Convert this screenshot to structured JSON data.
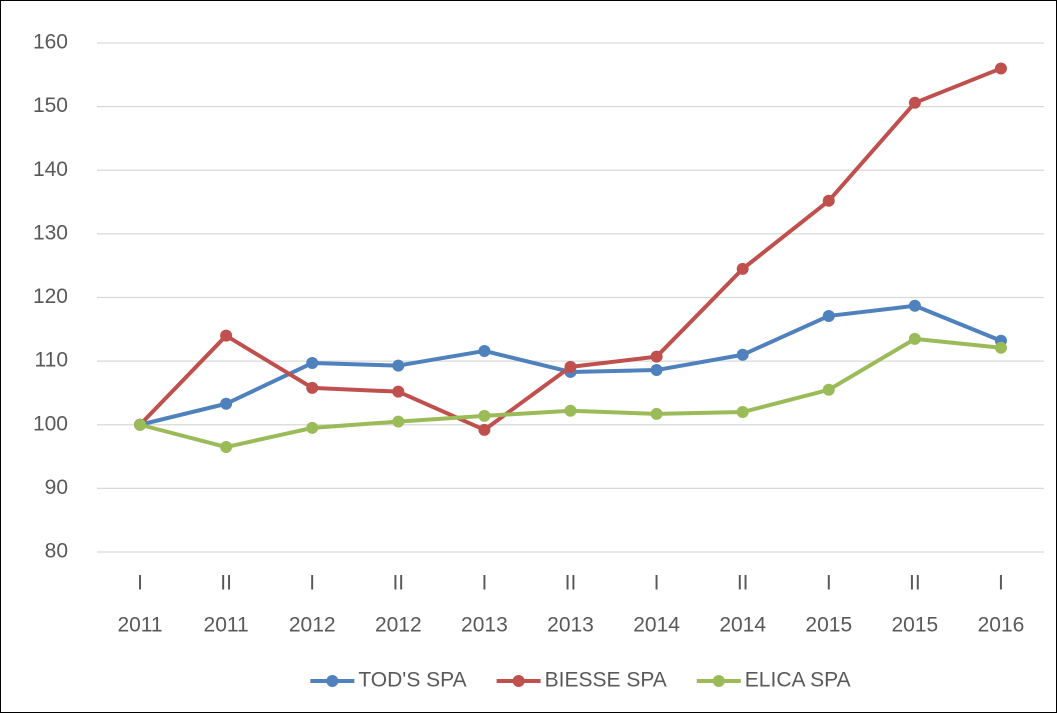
{
  "chart_data": {
    "type": "line",
    "categories": [
      [
        "I",
        "2011"
      ],
      [
        "II",
        "2011"
      ],
      [
        "I",
        "2012"
      ],
      [
        "II",
        "2012"
      ],
      [
        "I",
        "2013"
      ],
      [
        "II",
        "2013"
      ],
      [
        "I",
        "2014"
      ],
      [
        "II",
        "2014"
      ],
      [
        "I",
        "2015"
      ],
      [
        "II",
        "2015"
      ],
      [
        "I",
        "2016"
      ]
    ],
    "series": [
      {
        "name": "TOD'S SPA",
        "color": "#4f81bd",
        "values": [
          100,
          103.3,
          109.7,
          109.3,
          111.6,
          108.3,
          108.6,
          111.0,
          117.1,
          118.7,
          113.2
        ]
      },
      {
        "name": "BIESSE SPA",
        "color": "#c0504d",
        "values": [
          100,
          114.0,
          105.8,
          105.2,
          99.2,
          109.1,
          110.7,
          124.5,
          135.2,
          150.6,
          156.0
        ]
      },
      {
        "name": "ELICA SPA",
        "color": "#9bbb59",
        "values": [
          100,
          96.5,
          99.5,
          100.5,
          101.4,
          102.2,
          101.7,
          102.0,
          105.5,
          113.5,
          112.1
        ]
      }
    ],
    "ylim": [
      80,
      160
    ],
    "yticks": [
      80,
      90,
      100,
      110,
      120,
      130,
      140,
      150,
      160
    ],
    "grid": true,
    "legend": "bottom"
  }
}
